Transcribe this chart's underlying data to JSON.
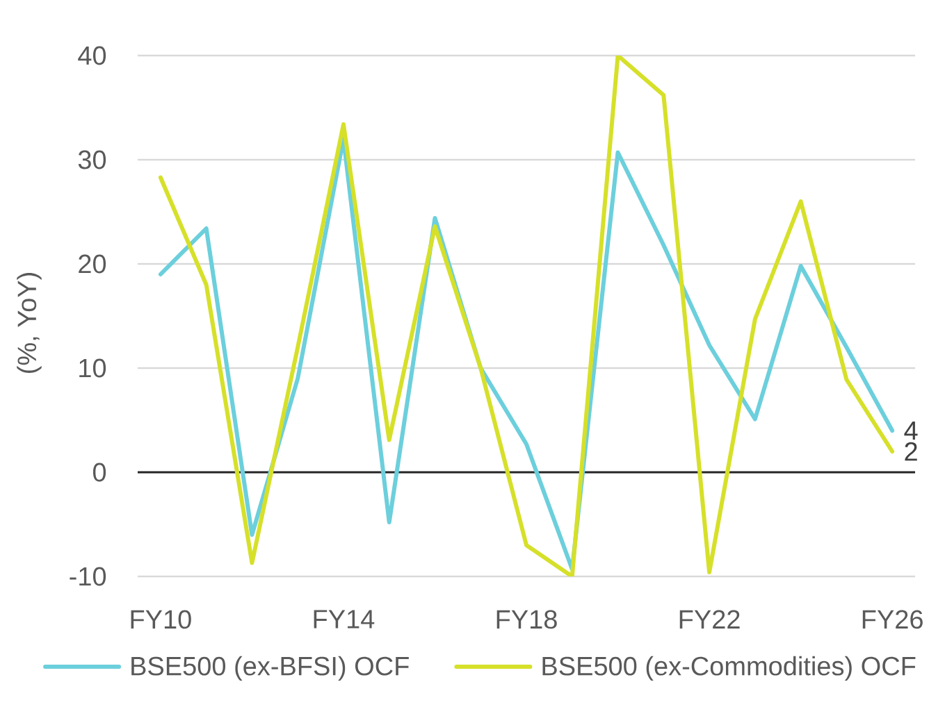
{
  "chart_data": {
    "type": "line",
    "ylabel": "(%, YoY)",
    "categories": [
      "FY10",
      null,
      null,
      null,
      "FY14",
      null,
      null,
      null,
      "FY18",
      null,
      null,
      null,
      "FY22",
      null,
      null,
      null,
      "FY26"
    ],
    "series": [
      {
        "name": "BSE500 (ex-BFSI) OCF",
        "color": "#6ccfdc",
        "values": [
          19,
          23.4,
          -6,
          9,
          32,
          -4.8,
          24.4,
          10,
          2.7,
          -9.3,
          30.7,
          21.8,
          12.2,
          5.1,
          19.8,
          12,
          4
        ],
        "value_labels": [
          null,
          null,
          null,
          null,
          null,
          null,
          null,
          null,
          null,
          null,
          null,
          null,
          null,
          null,
          null,
          null,
          "4"
        ]
      },
      {
        "name": "BSE500 (ex-Commodities) OCF",
        "color": "#d6e029",
        "values": [
          28.3,
          18,
          -8.7,
          12,
          33.4,
          3.1,
          23.6,
          10,
          -7,
          -10,
          40,
          36.2,
          -9.6,
          14.7,
          26,
          8.9,
          2
        ],
        "value_labels": [
          null,
          null,
          null,
          null,
          null,
          null,
          null,
          null,
          null,
          null,
          null,
          null,
          null,
          null,
          null,
          null,
          "2"
        ]
      }
    ],
    "ylim": [
      -10,
      40
    ],
    "yticks": [
      -10,
      0,
      10,
      20,
      30,
      40
    ],
    "grid": "y",
    "legend": "bottom"
  }
}
